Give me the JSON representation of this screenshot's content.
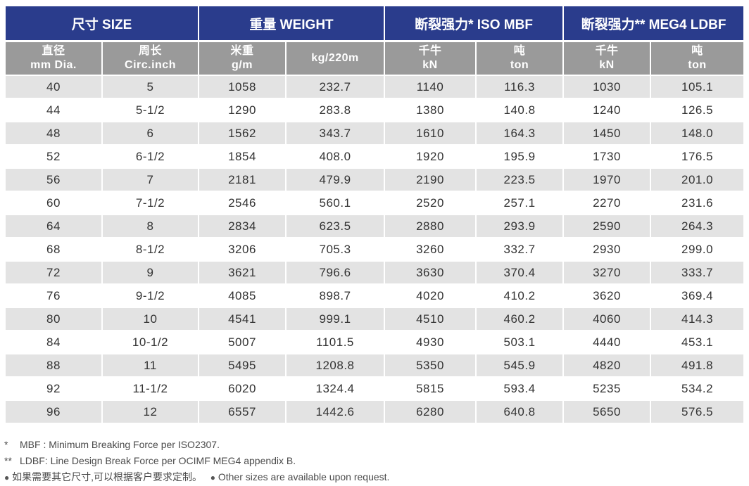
{
  "header": {
    "size": "尺寸 SIZE",
    "weight": "重量  WEIGHT",
    "iso_mbf": "断裂强力*  ISO MBF",
    "meg4_ldbf": "断裂强力**  MEG4 LDBF"
  },
  "subheader": [
    {
      "cn": "直径",
      "en": "mm Dia."
    },
    {
      "cn": "周长",
      "en": "Circ.inch"
    },
    {
      "cn": "米重",
      "en": "g/m"
    },
    {
      "cn": "",
      "en": "kg/220m"
    },
    {
      "cn": "千牛",
      "en": "kN"
    },
    {
      "cn": "吨",
      "en": "ton"
    },
    {
      "cn": "千牛",
      "en": "kN"
    },
    {
      "cn": "吨",
      "en": "ton"
    }
  ],
  "rows": [
    [
      "40",
      "5",
      "1058",
      "232.7",
      "1140",
      "116.3",
      "1030",
      "105.1"
    ],
    [
      "44",
      "5-1/2",
      "1290",
      "283.8",
      "1380",
      "140.8",
      "1240",
      "126.5"
    ],
    [
      "48",
      "6",
      "1562",
      "343.7",
      "1610",
      "164.3",
      "1450",
      "148.0"
    ],
    [
      "52",
      "6-1/2",
      "1854",
      "408.0",
      "1920",
      "195.9",
      "1730",
      "176.5"
    ],
    [
      "56",
      "7",
      "2181",
      "479.9",
      "2190",
      "223.5",
      "1970",
      "201.0"
    ],
    [
      "60",
      "7-1/2",
      "2546",
      "560.1",
      "2520",
      "257.1",
      "2270",
      "231.6"
    ],
    [
      "64",
      "8",
      "2834",
      "623.5",
      "2880",
      "293.9",
      "2590",
      "264.3"
    ],
    [
      "68",
      "8-1/2",
      "3206",
      "705.3",
      "3260",
      "332.7",
      "2930",
      "299.0"
    ],
    [
      "72",
      "9",
      "3621",
      "796.6",
      "3630",
      "370.4",
      "3270",
      "333.7"
    ],
    [
      "76",
      "9-1/2",
      "4085",
      "898.7",
      "4020",
      "410.2",
      "3620",
      "369.4"
    ],
    [
      "80",
      "10",
      "4541",
      "999.1",
      "4510",
      "460.2",
      "4060",
      "414.3"
    ],
    [
      "84",
      "10-1/2",
      "5007",
      "1101.5",
      "4930",
      "503.1",
      "4440",
      "453.1"
    ],
    [
      "88",
      "11",
      "5495",
      "1208.8",
      "5350",
      "545.9",
      "4820",
      "491.8"
    ],
    [
      "92",
      "11-1/2",
      "6020",
      "1324.4",
      "5815",
      "593.4",
      "5235",
      "534.2"
    ],
    [
      "96",
      "12",
      "6557",
      "1442.6",
      "6280",
      "640.8",
      "5650",
      "576.5"
    ]
  ],
  "notes": {
    "mbf_mark": "*",
    "mbf": "MBF : Minimum Breaking Force per ISO2307.",
    "ldbf_mark": "**",
    "ldbf": "LDBF: Line Design Break Force per OCIMF MEG4 appendix B.",
    "custom_cn": "如果需要其它尺寸,可以根据客户要求定制。",
    "custom_en": "Other sizes are available upon request."
  },
  "colors": {
    "header_bg": "#2a3c8c",
    "subheader_bg": "#9a9a9a",
    "stripe_bg": "#e3e3e3"
  }
}
